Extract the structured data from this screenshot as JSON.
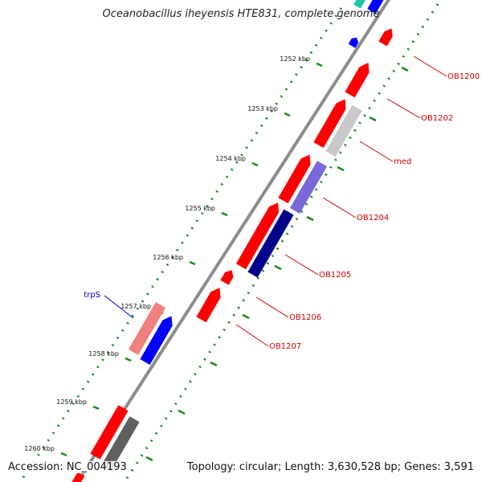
{
  "title": "Oceanobacillus iheyensis HTE831, complete genome",
  "footer": {
    "accession": "Accession: NC_004193",
    "summary": "Topology: circular; Length: 3,630,528 bp; Genes: 3,591"
  },
  "colors": {
    "backbone": "#8c8c8c",
    "tick_dots": "#1a8a1a",
    "forward_gene": "#ff0000",
    "forward_gene_light": "#f08080",
    "reverse_gene_blue": "#0000ff",
    "reverse_gene_lavender": "#7b68d8",
    "reverse_gene_navy": "#00008b",
    "grey_gene_light": "#c8c8c8",
    "grey_gene_dark": "#606060",
    "label_red": "#cc0000",
    "label_blue": "#0000cc",
    "teal": "#20c8a0"
  },
  "ticks": [
    {
      "label": "1252 kbp",
      "kbp": 1252
    },
    {
      "label": "1253 kbp",
      "kbp": 1253
    },
    {
      "label": "1254 kbp",
      "kbp": 1254
    },
    {
      "label": "1255 kbp",
      "kbp": 1255
    },
    {
      "label": "1256 kbp",
      "kbp": 1256
    },
    {
      "label": "1257 kbp",
      "kbp": 1257
    },
    {
      "label": "1258 kbp",
      "kbp": 1258
    },
    {
      "label": "1259 kbp",
      "kbp": 1259
    },
    {
      "label": "1260 kbp",
      "kbp": 1260
    }
  ],
  "gene_labels": [
    {
      "text": "OB1200",
      "color": "label_red"
    },
    {
      "text": "OB1202",
      "color": "label_red"
    },
    {
      "text": "med",
      "color": "label_red"
    },
    {
      "text": "OB1204",
      "color": "label_red"
    },
    {
      "text": "OB1205",
      "color": "label_red"
    },
    {
      "text": "OB1206",
      "color": "label_red"
    },
    {
      "text": "OB1207",
      "color": "label_red"
    },
    {
      "text": "trpS",
      "color": "label_blue"
    }
  ]
}
